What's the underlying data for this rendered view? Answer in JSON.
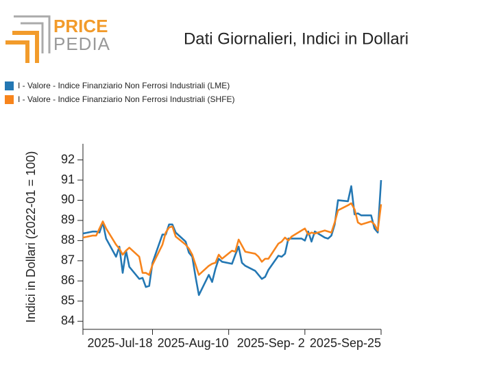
{
  "chart_data": {
    "type": "line",
    "logo": {
      "top": "PRICE",
      "bottom": "PEDIA"
    },
    "title": "Dati Giornalieri, Indici in Dollari",
    "y_label": "Indici in Dollari (2022-01 = 100)",
    "legend": "top-left",
    "xlim": [
      "2025-06-27",
      "2025-09-25"
    ],
    "xticks": [
      {
        "value": "2025-07-18",
        "label": "2025-Jul-18"
      },
      {
        "value": "2025-08-10",
        "label": "2025-Aug-10"
      },
      {
        "value": "2025-09-02",
        "label": "2025-Sep- 2"
      },
      {
        "value": "2025-09-25",
        "label": "2025-Sep-25"
      }
    ],
    "ylim": [
      83.6,
      92.8
    ],
    "yticks": [
      84,
      85,
      86,
      87,
      88,
      89,
      90,
      91,
      92
    ],
    "x": [
      "2025-06-27",
      "2025-06-30",
      "2025-07-01",
      "2025-07-02",
      "2025-07-03",
      "2025-07-04",
      "2025-07-07",
      "2025-07-08",
      "2025-07-09",
      "2025-07-10",
      "2025-07-11",
      "2025-07-14",
      "2025-07-15",
      "2025-07-16",
      "2025-07-17",
      "2025-07-18",
      "2025-07-21",
      "2025-07-22",
      "2025-07-23",
      "2025-07-24",
      "2025-07-25",
      "2025-07-28",
      "2025-07-29",
      "2025-07-30",
      "2025-07-31",
      "2025-08-01",
      "2025-08-04",
      "2025-08-05",
      "2025-08-06",
      "2025-08-07",
      "2025-08-08",
      "2025-08-11",
      "2025-08-12",
      "2025-08-13",
      "2025-08-14",
      "2025-08-15",
      "2025-08-18",
      "2025-08-19",
      "2025-08-20",
      "2025-08-21",
      "2025-08-22",
      "2025-08-25",
      "2025-08-26",
      "2025-08-27",
      "2025-08-28",
      "2025-08-29",
      "2025-09-01",
      "2025-09-02",
      "2025-09-03",
      "2025-09-04",
      "2025-09-05",
      "2025-09-08",
      "2025-09-09",
      "2025-09-10",
      "2025-09-11",
      "2025-09-12",
      "2025-09-15",
      "2025-09-16",
      "2025-09-17",
      "2025-09-18",
      "2025-09-19",
      "2025-09-22",
      "2025-09-23",
      "2025-09-24",
      "2025-09-25"
    ],
    "series": [
      {
        "name": "I - Valore - Indice Finanziario Non Ferrosi Industriali (LME)",
        "color": "#2377b3",
        "values": [
          88.35,
          88.45,
          88.45,
          88.4,
          88.9,
          88.1,
          87.2,
          87.7,
          86.4,
          87.5,
          86.7,
          86.1,
          86.15,
          85.7,
          85.75,
          86.9,
          88.3,
          88.3,
          88.8,
          88.8,
          88.4,
          87.95,
          87.4,
          87.2,
          86.2,
          85.3,
          86.3,
          85.95,
          86.6,
          87.1,
          86.95,
          86.85,
          87.3,
          87.7,
          86.9,
          86.75,
          86.5,
          86.3,
          86.1,
          86.2,
          86.55,
          87.25,
          87.2,
          87.35,
          88.1,
          88.1,
          88.1,
          88.0,
          88.45,
          87.95,
          88.45,
          88.15,
          88.1,
          88.25,
          88.8,
          90.0,
          89.95,
          90.7,
          89.3,
          89.35,
          89.25,
          89.25,
          88.6,
          88.4,
          91.0
        ]
      },
      {
        "name": "I - Valore - Indice Finanziario Non Ferrosi Industriali (SHFE)",
        "color": "#f7841c",
        "values": [
          88.15,
          88.25,
          88.25,
          88.6,
          88.95,
          88.6,
          87.8,
          87.6,
          87.3,
          87.5,
          87.65,
          87.2,
          86.4,
          86.4,
          86.3,
          86.8,
          87.8,
          88.4,
          88.65,
          88.7,
          88.2,
          87.8,
          87.6,
          87.3,
          86.8,
          86.3,
          86.75,
          86.85,
          86.9,
          87.3,
          87.1,
          87.5,
          87.45,
          88.05,
          87.75,
          87.45,
          87.35,
          87.2,
          86.95,
          87.1,
          87.1,
          87.85,
          87.95,
          88.15,
          88.0,
          88.2,
          88.5,
          88.6,
          88.3,
          88.4,
          88.35,
          88.5,
          88.45,
          88.4,
          88.9,
          89.5,
          89.75,
          89.85,
          89.55,
          88.9,
          88.8,
          88.95,
          88.8,
          88.5,
          89.8
        ]
      }
    ]
  }
}
